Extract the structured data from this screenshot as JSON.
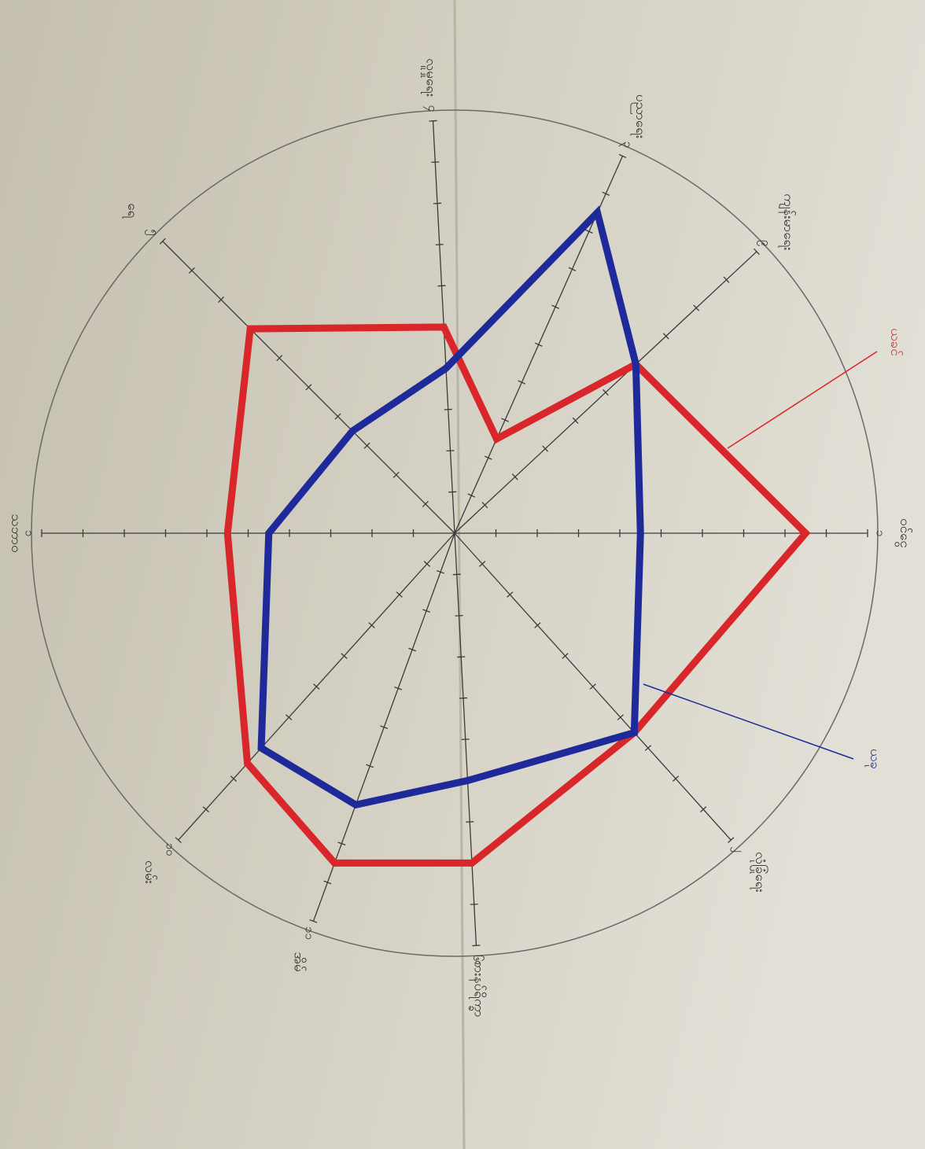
{
  "chart_data": {
    "type": "radar",
    "categories": [
      "ဝင်ငွေ",
      "ကျန်းမာရေး",
      "ပညာရေး",
      "လူမှုရေး",
      "ရေ",
      "သဘာဝ",
      "လမ်း",
      "အိမ်",
      "စားနပ်ရိက္ခာ",
      "လုံခြုံရေး"
    ],
    "axis_numbers": [
      "၁",
      "၉",
      "၃",
      "၄",
      "၅",
      "၁",
      "၁၀",
      "၁၁",
      "၆",
      "၂"
    ],
    "rlim": [
      0,
      10
    ],
    "rticks": [
      1,
      2,
      3,
      4,
      5,
      6,
      7,
      8,
      9,
      10
    ],
    "series": [
      {
        "name": "ယခင်",
        "color": "#d8262b",
        "values": [
          8.5,
          6,
          2.5,
          5,
          7,
          5.5,
          7.5,
          8.5,
          8,
          6.5
        ]
      },
      {
        "name": "ယခု",
        "color": "#1f2a9a",
        "values": [
          4.5,
          6,
          8.5,
          4,
          3.5,
          4.5,
          7,
          7,
          6,
          6.5
        ]
      }
    ]
  }
}
